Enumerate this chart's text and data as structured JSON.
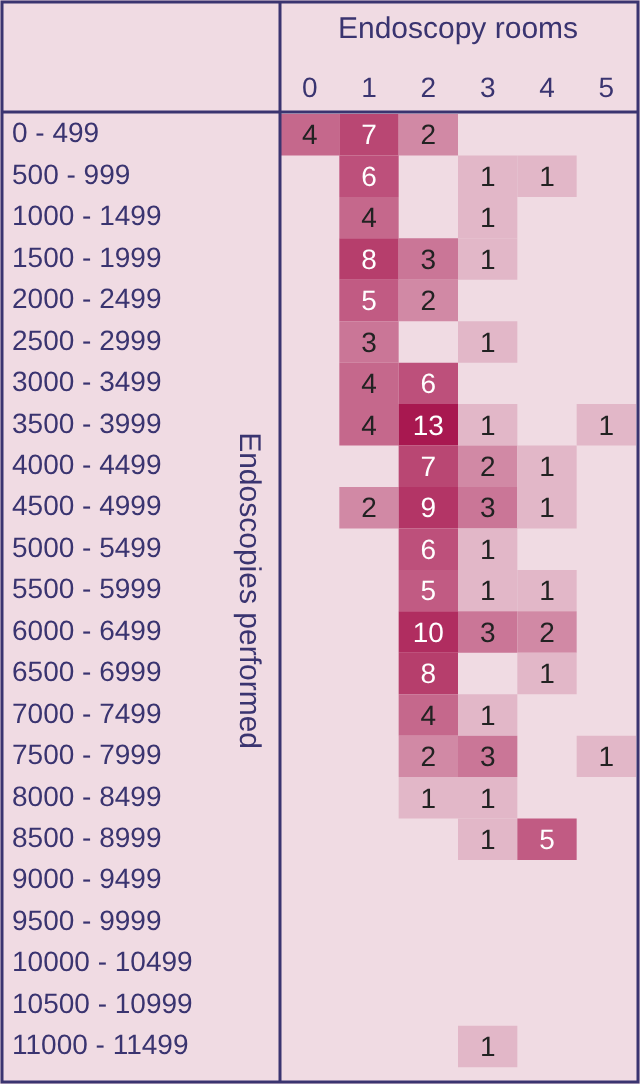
{
  "chart_data": {
    "type": "heatmap",
    "xlabel": "Endoscopy rooms",
    "ylabel": "Endoscopies performed",
    "data_labels": true,
    "categories": [
      "0",
      "1",
      "2",
      "3",
      "4",
      "5"
    ],
    "y_categories": [
      "0 - 499",
      "500 - 999",
      "1000 - 1499",
      "1500 - 1999",
      "2000 - 2499",
      "2500 - 2999",
      "3000 - 3499",
      "3500 - 3999",
      "4000 - 4499",
      "4500 - 4999",
      "5000 - 5499",
      "5500 - 5999",
      "6000 - 6499",
      "6500 - 6999",
      "7000 - 7499",
      "7500 - 7999",
      "8000 - 8499",
      "8500 - 8999",
      "9000 - 9499",
      "9500 - 9999",
      "10000 - 10499",
      "10500 - 10999",
      "11000 - 11499"
    ],
    "cells": [
      [
        4,
        7,
        2,
        null,
        null,
        null
      ],
      [
        null,
        6,
        null,
        1,
        1,
        null
      ],
      [
        null,
        4,
        null,
        1,
        null,
        null
      ],
      [
        null,
        8,
        3,
        1,
        null,
        null
      ],
      [
        null,
        5,
        2,
        null,
        null,
        null
      ],
      [
        null,
        3,
        null,
        1,
        null,
        null
      ],
      [
        null,
        4,
        6,
        null,
        null,
        null
      ],
      [
        null,
        4,
        13,
        1,
        null,
        1
      ],
      [
        null,
        null,
        7,
        2,
        1,
        null
      ],
      [
        null,
        2,
        9,
        3,
        1,
        null
      ],
      [
        null,
        null,
        6,
        1,
        null,
        null
      ],
      [
        null,
        null,
        5,
        1,
        1,
        null
      ],
      [
        null,
        null,
        10,
        3,
        2,
        null
      ],
      [
        null,
        null,
        8,
        null,
        1,
        null
      ],
      [
        null,
        null,
        4,
        1,
        null,
        null
      ],
      [
        null,
        null,
        2,
        3,
        null,
        1
      ],
      [
        null,
        null,
        1,
        1,
        null,
        null
      ],
      [
        null,
        null,
        null,
        1,
        5,
        null
      ],
      [
        null,
        null,
        null,
        null,
        null,
        null
      ],
      [
        null,
        null,
        null,
        null,
        null,
        null
      ],
      [
        null,
        null,
        null,
        null,
        null,
        null
      ],
      [
        null,
        null,
        null,
        null,
        null,
        null
      ],
      [
        null,
        null,
        null,
        1,
        null,
        null
      ]
    ]
  }
}
